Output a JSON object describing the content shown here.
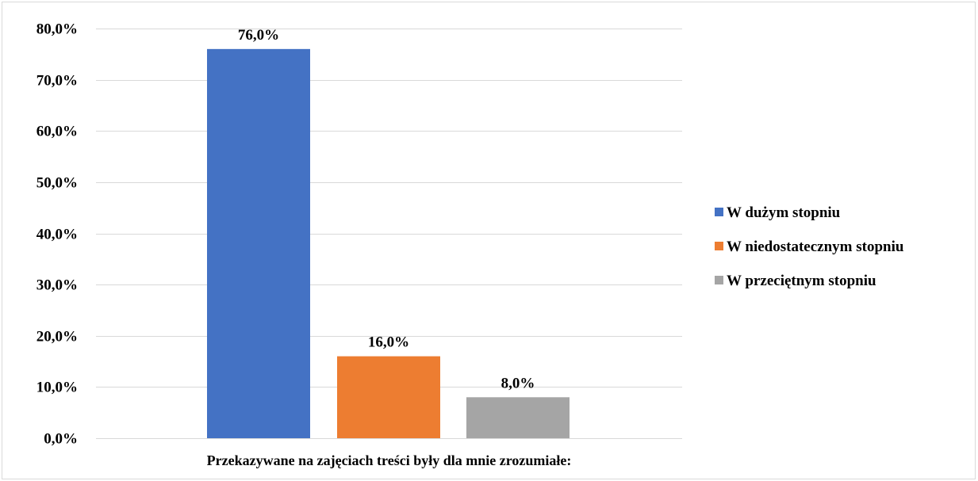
{
  "chart_data": {
    "type": "bar",
    "categories": [
      "Przekazywane na zajęciach treści były dla mnie zrozumiałe:"
    ],
    "series": [
      {
        "name": "W dużym stopniu",
        "values": [
          76.0
        ],
        "color": "#4472c4"
      },
      {
        "name": "W niedostatecznym stopniu",
        "values": [
          16.0
        ],
        "color": "#ed7d31"
      },
      {
        "name": "W przeciętnym stopniu",
        "values": [
          8.0
        ],
        "color": "#a5a5a5"
      }
    ],
    "data_labels": [
      "76,0%",
      "16,0%",
      "8,0%"
    ],
    "y_ticks": [
      "0,0%",
      "10,0%",
      "20,0%",
      "30,0%",
      "40,0%",
      "50,0%",
      "60,0%",
      "70,0%",
      "80,0%"
    ],
    "ylim": [
      0,
      80
    ],
    "grid": true,
    "gridline_color": "#d9d9d9",
    "legend_position": "right",
    "title": "",
    "xlabel": "",
    "ylabel": ""
  }
}
